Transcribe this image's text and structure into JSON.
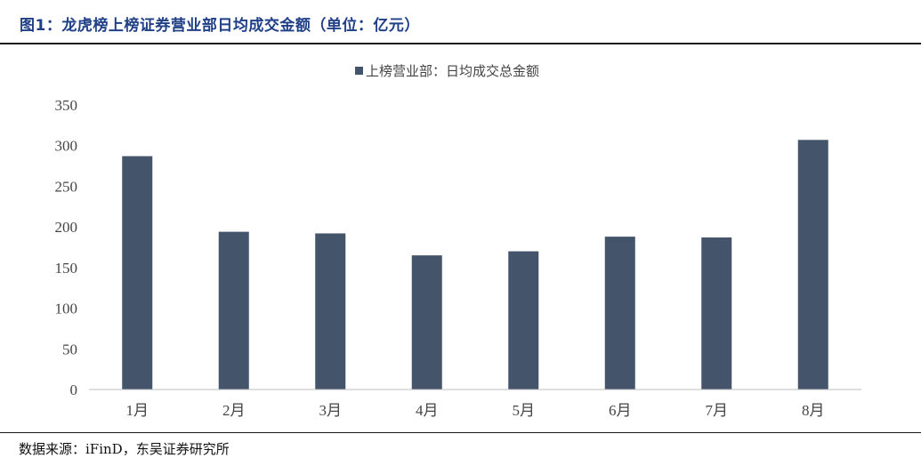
{
  "figure_title": "图1：龙虎榜上榜证券营业部日均成交金额（单位：亿元）",
  "source_note": "数据来源：iFinD，东吴证券研究所",
  "colors": {
    "bar": "#44546a",
    "title": "#1f3f86",
    "axis": "#bfbfbf",
    "text": "#444444"
  },
  "chart_data": {
    "type": "bar",
    "title": "",
    "xlabel": "",
    "ylabel": "",
    "categories": [
      "1月",
      "2月",
      "3月",
      "4月",
      "5月",
      "6月",
      "7月",
      "8月"
    ],
    "series": [
      {
        "name": "上榜营业部：日均成交总金额",
        "values": [
          287,
          194,
          192,
          165,
          170,
          188,
          187,
          307
        ]
      }
    ],
    "ylim": [
      0,
      350
    ],
    "yticks": [
      0,
      50,
      100,
      150,
      200,
      250,
      300,
      350
    ],
    "legend_position": "top-center",
    "grid": false
  }
}
